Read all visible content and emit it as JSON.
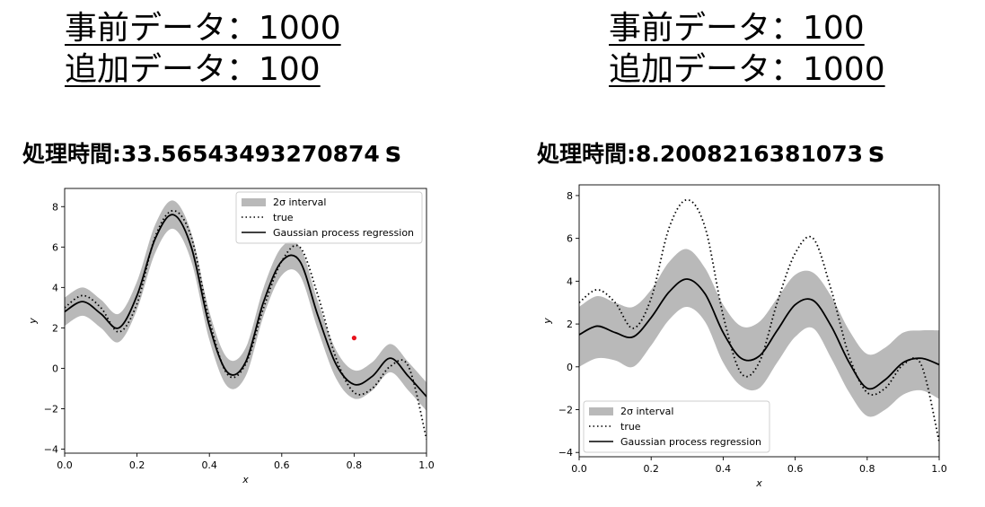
{
  "panels": [
    {
      "header_line1": "事前データ：1000",
      "header_line2": "追加データ：100",
      "time_label": "処理時間:33.56543493270874",
      "time_unit": "s"
    },
    {
      "header_line1": "事前データ：100",
      "header_line2": "追加データ：1000",
      "time_label": "処理時間:8.2008216381073",
      "time_unit": "s"
    }
  ],
  "colors": {
    "band": "#b9b9b9",
    "line": "#000000",
    "marker": "#e8111b"
  },
  "chart_data": [
    {
      "type": "line",
      "xlabel": "x",
      "ylabel": "y",
      "xlim": [
        0.0,
        1.0
      ],
      "ylim": [
        -4.2,
        8.9
      ],
      "xticks": [
        "0.0",
        "0.2",
        "0.4",
        "0.6",
        "0.8",
        "1.0"
      ],
      "yticks": [
        "−4",
        "−2",
        "0",
        "2",
        "4",
        "6",
        "8"
      ],
      "legend_position": "top-right",
      "legend": [
        "2σ interval",
        "true",
        "Gaussian process regression"
      ],
      "x": [
        0.0,
        0.05,
        0.1,
        0.15,
        0.2,
        0.25,
        0.3,
        0.35,
        0.4,
        0.45,
        0.5,
        0.55,
        0.6,
        0.65,
        0.7,
        0.75,
        0.8,
        0.85,
        0.9,
        0.95,
        1.0
      ],
      "series": [
        {
          "name": "true",
          "style": "dotted",
          "values": [
            3.0,
            3.6,
            3.0,
            1.8,
            3.2,
            6.5,
            7.8,
            6.5,
            2.4,
            -0.3,
            0.2,
            3.0,
            5.3,
            6.0,
            3.6,
            0.5,
            -1.2,
            -1.0,
            0.1,
            0.1,
            -3.5
          ]
        },
        {
          "name": "Gaussian process regression",
          "style": "solid",
          "values": [
            2.8,
            3.3,
            2.7,
            2.0,
            3.6,
            6.4,
            7.6,
            6.0,
            2.1,
            -0.2,
            0.3,
            3.3,
            5.3,
            5.3,
            2.6,
            0.2,
            -0.8,
            -0.4,
            0.5,
            -0.4,
            -1.4
          ]
        },
        {
          "name": "2σ interval",
          "style": "band",
          "lower": [
            2.1,
            2.6,
            2.0,
            1.3,
            2.9,
            5.7,
            6.9,
            5.3,
            1.4,
            -0.9,
            -0.4,
            2.6,
            4.6,
            4.6,
            1.9,
            -0.5,
            -1.5,
            -1.1,
            -0.2,
            -1.1,
            -2.1
          ],
          "upper": [
            3.5,
            4.0,
            3.4,
            2.7,
            4.3,
            7.1,
            8.3,
            6.7,
            2.8,
            0.5,
            1.0,
            4.0,
            6.0,
            6.0,
            3.3,
            0.9,
            -0.1,
            0.3,
            1.2,
            0.3,
            -0.7
          ]
        }
      ],
      "points": [
        {
          "x": 0.8,
          "y": 1.5
        }
      ]
    },
    {
      "type": "line",
      "xlabel": "x",
      "ylabel": "y",
      "xlim": [
        0.0,
        1.0
      ],
      "ylim": [
        -4.2,
        8.5
      ],
      "xticks": [
        "0.0",
        "0.2",
        "0.4",
        "0.6",
        "0.8",
        "1.0"
      ],
      "yticks": [
        "−4",
        "−2",
        "0",
        "2",
        "4",
        "6",
        "8"
      ],
      "legend_position": "bottom-left",
      "legend": [
        "2σ interval",
        "true",
        "Gaussian process regression"
      ],
      "x": [
        0.0,
        0.05,
        0.1,
        0.15,
        0.2,
        0.25,
        0.3,
        0.35,
        0.4,
        0.45,
        0.5,
        0.55,
        0.6,
        0.65,
        0.7,
        0.75,
        0.8,
        0.85,
        0.9,
        0.95,
        1.0
      ],
      "series": [
        {
          "name": "true",
          "style": "dotted",
          "values": [
            3.0,
            3.6,
            3.0,
            1.8,
            3.2,
            6.5,
            7.8,
            6.5,
            2.4,
            -0.3,
            0.2,
            3.0,
            5.3,
            6.0,
            3.6,
            0.5,
            -1.2,
            -1.0,
            0.1,
            0.1,
            -3.5
          ]
        },
        {
          "name": "Gaussian process regression",
          "style": "solid",
          "values": [
            1.5,
            1.9,
            1.6,
            1.4,
            2.3,
            3.5,
            4.1,
            3.4,
            1.6,
            0.4,
            0.5,
            1.7,
            2.9,
            3.1,
            1.9,
            0.2,
            -1.0,
            -0.6,
            0.2,
            0.4,
            0.1
          ]
        },
        {
          "name": "2σ interval",
          "style": "band",
          "lower": [
            0.0,
            0.4,
            0.3,
            0.0,
            1.0,
            2.2,
            2.8,
            2.1,
            0.2,
            -0.9,
            -1.0,
            0.2,
            1.4,
            1.8,
            0.4,
            -1.2,
            -2.3,
            -2.0,
            -1.3,
            -1.1,
            -1.5
          ],
          "upper": [
            2.8,
            3.3,
            3.0,
            2.8,
            3.6,
            4.9,
            5.5,
            4.6,
            2.9,
            1.9,
            2.1,
            3.2,
            4.3,
            4.4,
            3.3,
            1.7,
            0.6,
            0.9,
            1.6,
            1.7,
            1.7
          ]
        }
      ],
      "points": []
    }
  ]
}
